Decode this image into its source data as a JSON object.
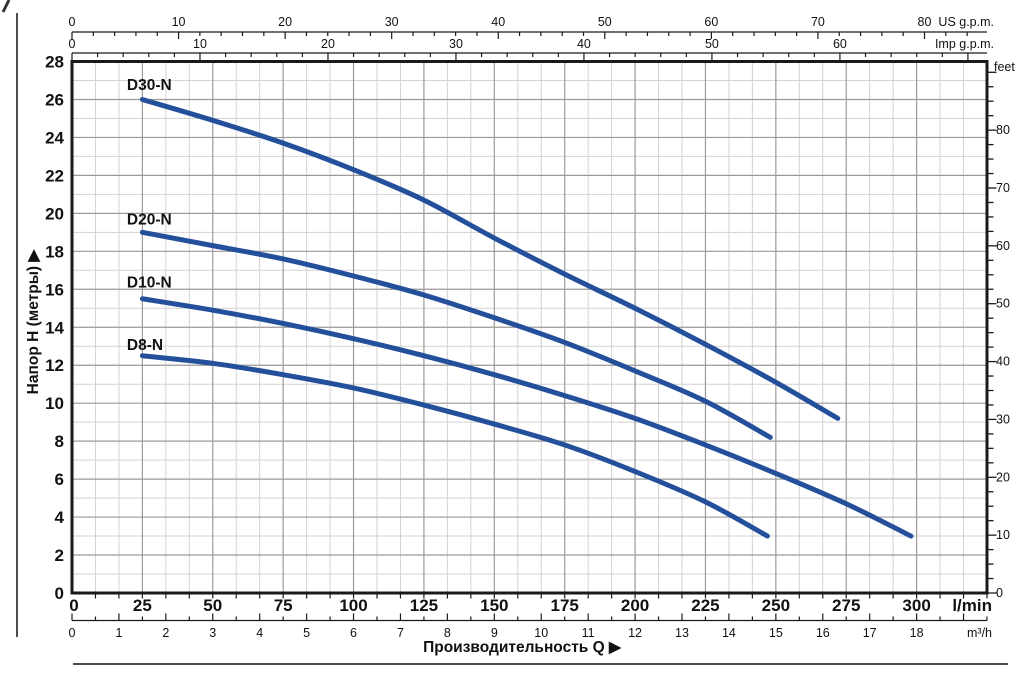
{
  "page": {
    "background": "#ffffff",
    "decor": {
      "left_rule_color": "#4d4d4d",
      "bottom_rule_color": "#4d4d4d",
      "corner_mark_color": "#333333"
    }
  },
  "chart_data": {
    "type": "line",
    "title": "",
    "xlabel": "Производительность Q  ▶",
    "ylabel": "Напор H (метры)  ▶",
    "legend_position": "curve-labels-inline",
    "grid": true,
    "colors": {
      "curve": "#24509B",
      "grid_minor": "#d2d2d2",
      "grid_major": "#9a9a9a",
      "border": "#1a1a1a",
      "text": "#111111"
    },
    "y_axes": {
      "meters": {
        "side": "left",
        "min": 0,
        "max": 28,
        "major_step": 2,
        "minor_step": 1
      },
      "feet": {
        "side": "right",
        "unit_label": "feet",
        "m_per_unit": 0.3048,
        "major_step": 10,
        "minor_step": 2.5,
        "label_min": 0,
        "label_max": 80
      }
    },
    "x_range_lmin": [
      0,
      325
    ],
    "x_axes": {
      "us_gpm": {
        "unit_label": "US g.p.m.",
        "lmin_per_unit": 3.785,
        "major_step": 10,
        "minor_step": 2,
        "label_max": 80
      },
      "imp_gpm": {
        "unit_label": "Imp g.p.m.",
        "lmin_per_unit": 4.546,
        "major_step": 10,
        "minor_step": 2,
        "label_max": 60
      },
      "lmin": {
        "unit_label": "l/min",
        "lmin_per_unit": 1,
        "major_step": 25,
        "label_max": 300
      },
      "m3h": {
        "unit_label": "m³/h",
        "lmin_per_unit": 16.6667,
        "major_step": 1,
        "minor_step": 0.5,
        "label_max": 18
      }
    },
    "series": [
      {
        "name": "D30-N",
        "label_at_q": 19.5,
        "label_at_h": 26.5,
        "points": [
          [
            25,
            26.0
          ],
          [
            50,
            24.9
          ],
          [
            75,
            23.7
          ],
          [
            100,
            22.3
          ],
          [
            125,
            20.7
          ],
          [
            150,
            18.7
          ],
          [
            175,
            16.8
          ],
          [
            200,
            15.0
          ],
          [
            225,
            13.1
          ],
          [
            250,
            11.1
          ],
          [
            272,
            9.2
          ]
        ]
      },
      {
        "name": "D20-N",
        "label_at_q": 19.5,
        "label_at_h": 19.4,
        "points": [
          [
            25,
            19.0
          ],
          [
            50,
            18.3
          ],
          [
            75,
            17.6
          ],
          [
            100,
            16.7
          ],
          [
            125,
            15.7
          ],
          [
            150,
            14.5
          ],
          [
            175,
            13.2
          ],
          [
            200,
            11.7
          ],
          [
            225,
            10.1
          ],
          [
            248,
            8.2
          ]
        ]
      },
      {
        "name": "D10-N",
        "label_at_q": 19.5,
        "label_at_h": 16.1,
        "points": [
          [
            25,
            15.5
          ],
          [
            50,
            14.9
          ],
          [
            75,
            14.2
          ],
          [
            100,
            13.4
          ],
          [
            125,
            12.5
          ],
          [
            150,
            11.5
          ],
          [
            175,
            10.4
          ],
          [
            200,
            9.2
          ],
          [
            225,
            7.8
          ],
          [
            250,
            6.3
          ],
          [
            275,
            4.7
          ],
          [
            298,
            3.0
          ]
        ]
      },
      {
        "name": "D8-N",
        "label_at_q": 19.5,
        "label_at_h": 12.8,
        "points": [
          [
            25,
            12.5
          ],
          [
            50,
            12.1
          ],
          [
            75,
            11.5
          ],
          [
            100,
            10.8
          ],
          [
            125,
            9.9
          ],
          [
            150,
            8.9
          ],
          [
            175,
            7.8
          ],
          [
            200,
            6.4
          ],
          [
            225,
            4.8
          ],
          [
            247,
            3.0
          ]
        ]
      }
    ]
  }
}
